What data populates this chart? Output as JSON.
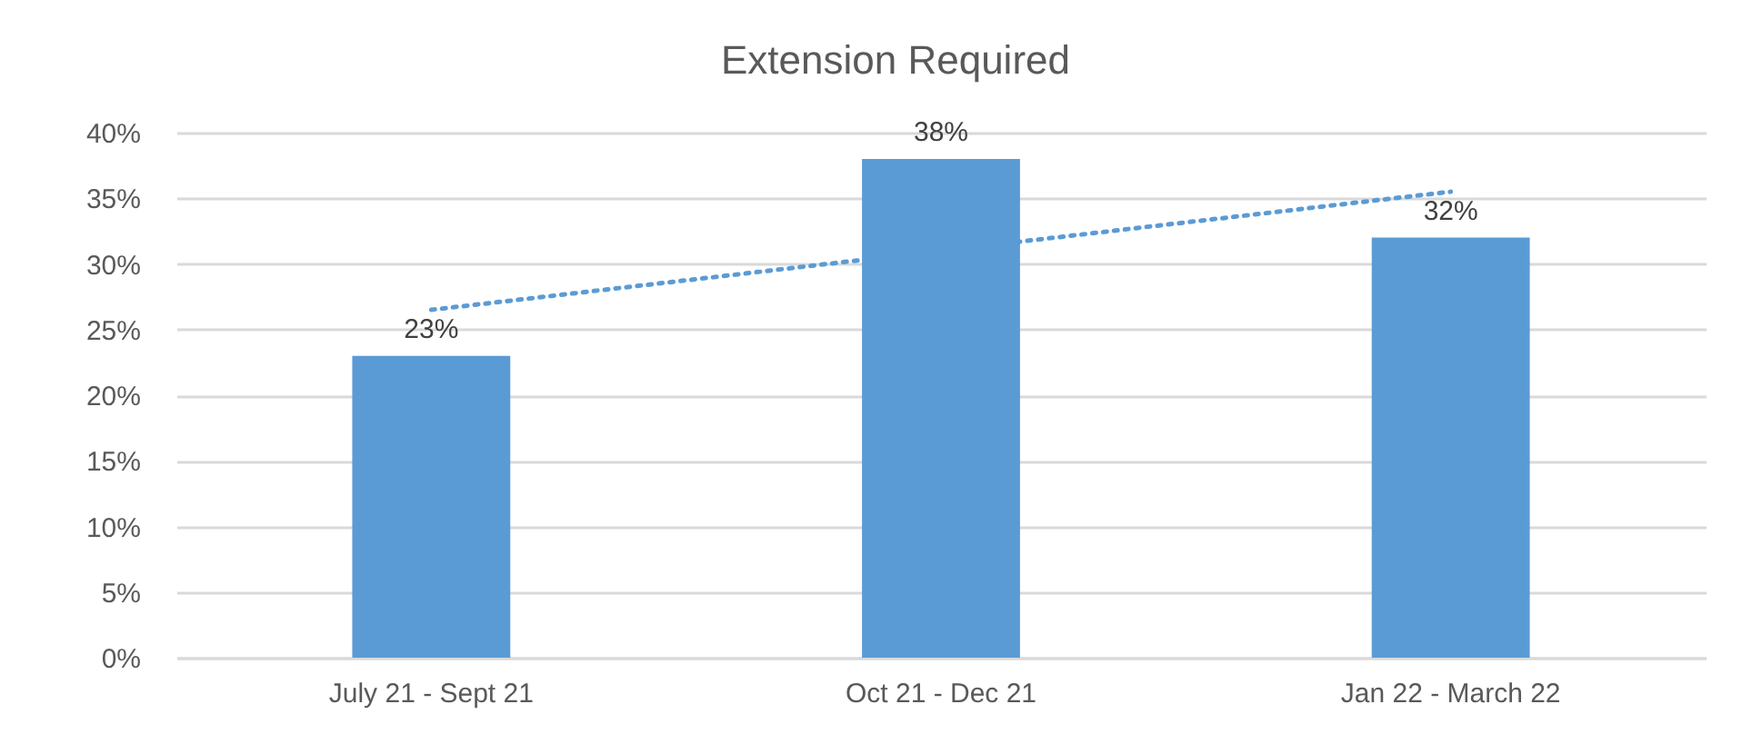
{
  "chart_data": {
    "type": "bar",
    "title": "Extension Required",
    "categories": [
      "July 21 - Sept 21",
      "Oct 21 - Dec 21",
      "Jan 22 - March 22"
    ],
    "series": [
      {
        "type": "bar",
        "color": "#5b9bd5",
        "values": [
          23,
          38,
          32
        ],
        "value_labels": [
          "23%",
          "38%",
          "32%"
        ]
      },
      {
        "type": "line",
        "x": [
          "July 21 - Sept 21",
          "Jan 22 - March 22"
        ],
        "values": [
          26.5,
          35.5
        ],
        "color": "#5b9bd5",
        "line_style": "dotted"
      }
    ],
    "ylim": [
      0,
      40
    ],
    "yticks": [
      {
        "value": 0,
        "label": "0%"
      },
      {
        "value": 5,
        "label": "5%"
      },
      {
        "value": 10,
        "label": "10%"
      },
      {
        "value": 15,
        "label": "15%"
      },
      {
        "value": 20,
        "label": "20%"
      },
      {
        "value": 25,
        "label": "25%"
      },
      {
        "value": 30,
        "label": "30%"
      },
      {
        "value": 35,
        "label": "35%"
      },
      {
        "value": 40,
        "label": "40%"
      }
    ],
    "grid": "y"
  }
}
